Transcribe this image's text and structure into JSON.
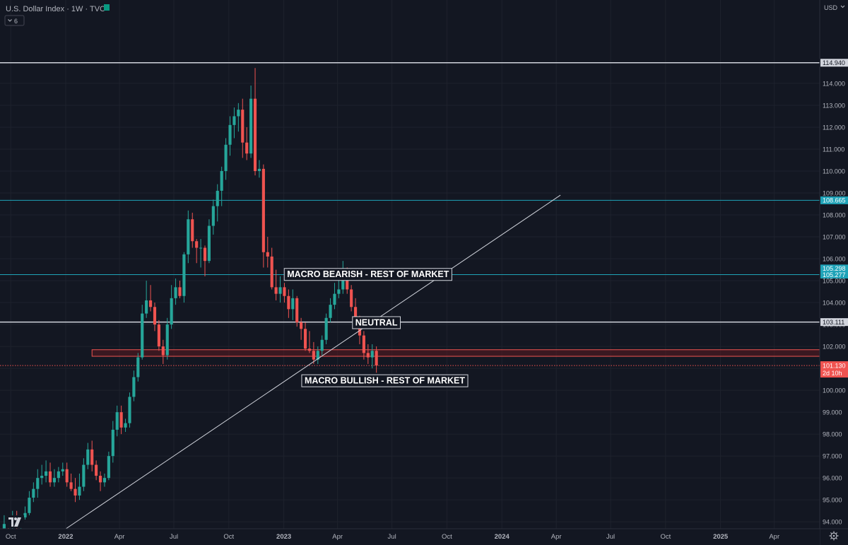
{
  "header": {
    "title": "U.S. Dollar Index · 1W · TVC",
    "status_color": "#089981",
    "collapse_count": "6",
    "currency": "USD"
  },
  "colors": {
    "up": "#26a69a",
    "down": "#ef5350",
    "background": "#131722",
    "grid": "#1e222d",
    "axis_text": "#b2b5be",
    "support_line": "#d1d4dc",
    "cyan_line": "#1fa3b8",
    "zone_fill": "#5b1a20",
    "zone_border": "#ef5350"
  },
  "chart_data": {
    "type": "candlestick",
    "interval": "1W",
    "x_range": [
      "2021-09-13",
      "2025-06-16"
    ],
    "ylim": [
      93.2,
      116.4
    ],
    "grid": true,
    "y_ticks": [
      94,
      95,
      96,
      97,
      98,
      99,
      100,
      101,
      102,
      103,
      104,
      105,
      106,
      107,
      108,
      109,
      110,
      111,
      112,
      113,
      114
    ],
    "y_tick_labels": [
      "94.000",
      "95.000",
      "96.000",
      "97.000",
      "98.000",
      "99.000",
      "100.000",
      "101.000",
      "102.000",
      "103.000",
      "104.000",
      "105.000",
      "106.000",
      "107.000",
      "108.000",
      "109.000",
      "110.000",
      "111.000",
      "112.000",
      "113.000",
      "114.000"
    ],
    "x_ticks": [
      {
        "date": "2021-10-01",
        "label": "Oct",
        "bold": false
      },
      {
        "date": "2022-01-01",
        "label": "2022",
        "bold": true
      },
      {
        "date": "2022-04-01",
        "label": "Apr",
        "bold": false
      },
      {
        "date": "2022-07-01",
        "label": "Jul",
        "bold": false
      },
      {
        "date": "2022-10-01",
        "label": "Oct",
        "bold": false
      },
      {
        "date": "2023-01-01",
        "label": "2023",
        "bold": true
      },
      {
        "date": "2023-04-01",
        "label": "Apr",
        "bold": false
      },
      {
        "date": "2023-07-01",
        "label": "Jul",
        "bold": false
      },
      {
        "date": "2023-10-01",
        "label": "Oct",
        "bold": false
      },
      {
        "date": "2024-01-01",
        "label": "2024",
        "bold": true
      },
      {
        "date": "2024-04-01",
        "label": "Apr",
        "bold": false
      },
      {
        "date": "2024-07-01",
        "label": "Jul",
        "bold": false
      },
      {
        "date": "2024-10-01",
        "label": "Oct",
        "bold": false
      },
      {
        "date": "2025-01-01",
        "label": "2025",
        "bold": true
      },
      {
        "date": "2025-04-01",
        "label": "Apr",
        "bold": false
      }
    ],
    "candles": {
      "start_date": "2021-09-20",
      "o": [
        93.5,
        93.9,
        93.8,
        94.0,
        93.9,
        94.2,
        94.4,
        95.1,
        95.5,
        96.0,
        96.1,
        96.3,
        95.8,
        96.0,
        96.3,
        96.4,
        95.8,
        95.5,
        95.2,
        95.6,
        96.6,
        97.3,
        96.6,
        96.1,
        95.8,
        96.0,
        97.0,
        98.2,
        99.0,
        98.3,
        98.5,
        99.7,
        100.6,
        101.5,
        103.5,
        104.1,
        103.8,
        103.0,
        102.0,
        101.6,
        103.0,
        104.2,
        104.7,
        104.3,
        106.2,
        107.8,
        106.8,
        106.5,
        106.5,
        105.9,
        107.5,
        108.4,
        109.1,
        110.0,
        111.2,
        112.1,
        112.5,
        112.8,
        111.3,
        110.8,
        113.3,
        110.0,
        110.1,
        106.3,
        106.1,
        104.7,
        104.4,
        104.7,
        104.3,
        103.7,
        104.2,
        103.1,
        102.8,
        101.9,
        101.8,
        101.4,
        101.8,
        102.3,
        103.3,
        103.9,
        104.4,
        104.6,
        105.2,
        104.6,
        103.8,
        103.2,
        102.5,
        101.7,
        101.5,
        101.8
      ],
      "h": [
        94.3,
        94.2,
        94.5,
        94.5,
        94.3,
        94.7,
        95.4,
        95.8,
        96.4,
        96.6,
        96.8,
        96.7,
        96.4,
        96.5,
        96.7,
        96.7,
        96.2,
        96.0,
        96.2,
        96.9,
        97.6,
        97.7,
        96.8,
        96.3,
        96.2,
        97.2,
        98.6,
        99.3,
        99.3,
        98.7,
        99.9,
        100.9,
        101.7,
        103.9,
        105.0,
        104.8,
        104.0,
        103.2,
        102.3,
        103.3,
        104.8,
        105.1,
        105.0,
        106.3,
        108.2,
        108.1,
        106.9,
        106.9,
        106.6,
        107.8,
        108.7,
        109.4,
        110.2,
        111.5,
        112.5,
        112.9,
        113.1,
        113.3,
        112.0,
        113.9,
        114.7,
        110.5,
        110.3,
        107.0,
        106.5,
        105.5,
        105.2,
        104.9,
        104.6,
        104.6,
        104.3,
        103.3,
        103.1,
        102.7,
        102.2,
        102.0,
        102.5,
        103.5,
        104.2,
        104.9,
        105.4,
        105.9,
        105.6,
        104.8,
        104.2,
        103.4,
        102.7,
        102.1,
        102.1,
        102.0
      ],
      "l": [
        93.3,
        93.4,
        93.6,
        93.7,
        93.6,
        94.1,
        94.3,
        94.9,
        95.1,
        95.7,
        95.8,
        95.6,
        95.6,
        95.8,
        96.1,
        95.6,
        95.4,
        94.9,
        95.0,
        95.4,
        96.4,
        96.3,
        95.9,
        95.4,
        95.6,
        95.9,
        96.7,
        97.9,
        98.0,
        98.1,
        98.3,
        99.5,
        100.4,
        101.4,
        103.3,
        103.6,
        102.7,
        101.8,
        101.2,
        101.4,
        102.8,
        103.9,
        104.2,
        104.0,
        105.8,
        106.5,
        105.8,
        105.6,
        105.2,
        105.8,
        107.1,
        107.7,
        108.4,
        109.6,
        110.7,
        111.5,
        111.8,
        110.6,
        110.5,
        110.6,
        109.8,
        109.7,
        105.6,
        105.6,
        104.6,
        104.1,
        104.0,
        104.0,
        103.3,
        103.2,
        102.9,
        102.3,
        101.8,
        101.7,
        101.2,
        101.2,
        101.6,
        102.1,
        103.1,
        103.7,
        104.2,
        104.4,
        104.4,
        103.6,
        102.9,
        102.1,
        101.4,
        101.2,
        101.0,
        100.8
      ],
      "c": [
        93.9,
        93.8,
        94.0,
        93.9,
        94.2,
        94.4,
        95.1,
        95.5,
        96.0,
        96.1,
        96.3,
        95.8,
        96.0,
        96.3,
        96.4,
        95.8,
        95.5,
        95.2,
        95.6,
        96.6,
        97.3,
        96.6,
        96.1,
        95.8,
        96.0,
        97.0,
        98.2,
        99.0,
        98.3,
        98.5,
        99.7,
        100.6,
        101.5,
        103.5,
        104.1,
        103.8,
        103.0,
        102.0,
        101.6,
        103.0,
        104.2,
        104.7,
        104.3,
        106.2,
        107.8,
        106.8,
        106.5,
        106.5,
        105.9,
        107.5,
        108.4,
        109.1,
        110.0,
        111.2,
        112.1,
        112.5,
        112.8,
        111.3,
        110.8,
        113.3,
        110.0,
        110.1,
        106.3,
        106.1,
        104.7,
        104.4,
        104.7,
        104.3,
        103.7,
        104.2,
        103.1,
        102.8,
        101.9,
        101.8,
        101.4,
        101.8,
        102.3,
        103.3,
        103.9,
        104.4,
        104.6,
        105.2,
        104.6,
        103.8,
        103.2,
        102.5,
        101.7,
        101.5,
        101.8,
        101.13
      ]
    },
    "horizontal_lines": [
      {
        "price": 114.94,
        "label": "114.940",
        "color": "#d1d4dc",
        "width": 1.5,
        "dashed": false
      },
      {
        "price": 108.665,
        "label": "108.665",
        "color": "#1fa3b8",
        "width": 1,
        "dashed": false
      },
      {
        "price": 105.277,
        "label": "105.277",
        "color": "#1fa3b8",
        "width": 1,
        "dashed": false
      },
      {
        "price": 103.111,
        "label": "103.111",
        "color": "#d1d4dc",
        "width": 1.5,
        "dashed": false
      }
    ],
    "extra_price_labels": [
      {
        "price": 105.298,
        "label": "105.298",
        "color": "#1fa3b8"
      }
    ],
    "current_price": {
      "price": 101.13,
      "label": "101.130",
      "countdown": "2d 10h",
      "color": "#ef5350"
    },
    "zone": {
      "from_date": "2022-02-14",
      "y_top": 101.85,
      "y_bottom": 101.55
    },
    "trendline": {
      "from": {
        "date": "2021-12-06",
        "price": 93.2
      },
      "to": {
        "date": "2024-04-08",
        "price": 108.9
      }
    },
    "annotations": [
      {
        "text": "MACRO BEARISH - REST OF MARKET",
        "date": "2023-05-22",
        "price": 105.3
      },
      {
        "text": "NEUTRAL",
        "date": "2023-06-05",
        "price": 103.1
      },
      {
        "text": "MACRO BULLISH - REST OF MARKET",
        "date": "2023-06-19",
        "price": 100.45
      }
    ]
  }
}
